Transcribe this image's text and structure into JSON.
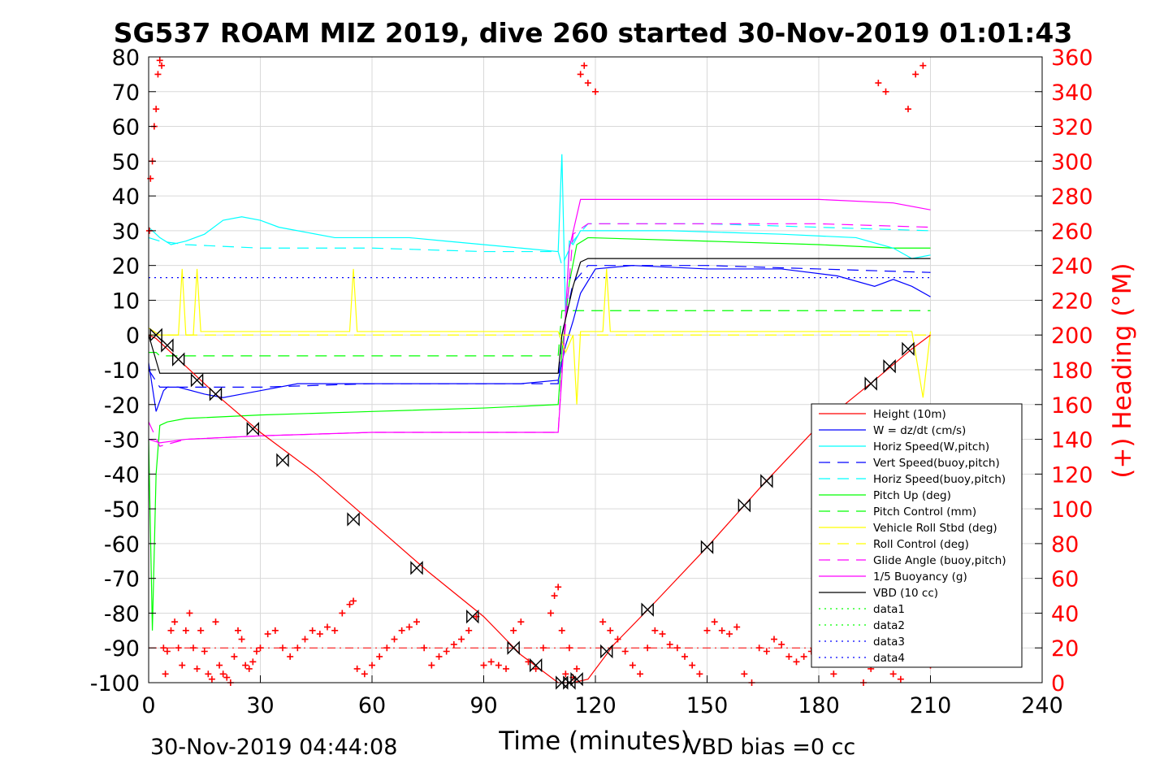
{
  "chart_data": {
    "type": "line",
    "title": "SG537 ROAM MIZ 2019, dive 260 started 30-Nov-2019 01:01:43",
    "xlabel": "Time (minutes)",
    "ylabel_right": "(+) Heading (°M)",
    "xlim": [
      0,
      240
    ],
    "ylim": [
      -100,
      80
    ],
    "ylim_right": [
      0,
      360
    ],
    "xticks": [
      "0",
      "30",
      "60",
      "90",
      "120",
      "150",
      "180",
      "210",
      "240"
    ],
    "yticks": [
      "80",
      "70",
      "60",
      "50",
      "40",
      "30",
      "20",
      "10",
      "0",
      "-10",
      "-20",
      "-30",
      "-40",
      "-50",
      "-60",
      "-70",
      "-80",
      "-90",
      "-100"
    ],
    "yticks_right": [
      "360",
      "340",
      "320",
      "300",
      "280",
      "260",
      "240",
      "220",
      "200",
      "180",
      "160",
      "140",
      "120",
      "100",
      "80",
      "60",
      "40",
      "20",
      "0"
    ],
    "grid": true,
    "legend_position": "lower-right",
    "footer_left": "30-Nov-2019 04:44:08",
    "footer_right": "VBD bias =0 cc",
    "colors": {
      "red": "#ff0000",
      "blue": "#0000ff",
      "cyan": "#00ffff",
      "green": "#00ff00",
      "yellow": "#ffff00",
      "magenta": "#ff00ff",
      "black": "#000000",
      "grid": "#d9d9d9"
    },
    "series": [
      {
        "name": "Height (10m)",
        "color": "#ff0000",
        "style": "solid",
        "x": [
          0,
          2,
          8,
          18,
          30,
          45,
          60,
          75,
          90,
          100,
          105,
          110,
          114,
          118,
          125,
          135,
          150,
          165,
          180,
          195,
          205,
          210
        ],
        "y": [
          0,
          -1,
          -7,
          -17,
          -28,
          -40,
          -54,
          -68,
          -81,
          -92,
          -96,
          -100,
          -100,
          -99,
          -89,
          -78,
          -61,
          -43,
          -26,
          -13,
          -4,
          0
        ]
      },
      {
        "name": "W = dz/dt (cm/s)",
        "color": "#0000ff",
        "style": "solid",
        "x": [
          0,
          1,
          2,
          3,
          4,
          5,
          8,
          15,
          20,
          25,
          30,
          40,
          60,
          80,
          100,
          110,
          112,
          114,
          116,
          120,
          130,
          150,
          170,
          185,
          195,
          200,
          205,
          210
        ],
        "y": [
          -8,
          -15,
          -22,
          -19,
          -16,
          -15,
          -15,
          -17,
          -18,
          -17,
          -16,
          -14,
          -14,
          -14,
          -14,
          -13,
          -3,
          4,
          12,
          19,
          20,
          19,
          19,
          17,
          14,
          16,
          14,
          11
        ]
      },
      {
        "name": "Horiz Speed(W,pitch)",
        "color": "#00ffff",
        "style": "solid",
        "x": [
          0,
          3,
          6,
          10,
          15,
          20,
          25,
          30,
          35,
          40,
          50,
          60,
          70,
          80,
          90,
          100,
          110,
          111,
          112,
          113,
          114,
          116,
          120,
          140,
          170,
          190,
          200,
          205,
          210
        ],
        "y": [
          31,
          28,
          26,
          27,
          29,
          33,
          34,
          33,
          31,
          30,
          28,
          28,
          28,
          27,
          26,
          25,
          24,
          52,
          5,
          27,
          26,
          30,
          30,
          30,
          29,
          28,
          25,
          22,
          23
        ]
      },
      {
        "name": "Vert Speed(buoy,pitch)",
        "color": "#0000ff",
        "style": "dash",
        "x": [
          0,
          3,
          10,
          30,
          60,
          90,
          110,
          111,
          114,
          118,
          150,
          180,
          210
        ],
        "y": [
          -10,
          -15,
          -15,
          -15,
          -14,
          -14,
          -14,
          0,
          15,
          20,
          20,
          19,
          18
        ]
      },
      {
        "name": "Horiz Speed(buoy,pitch)",
        "color": "#00ffff",
        "style": "dash",
        "x": [
          0,
          3,
          10,
          30,
          60,
          90,
          110,
          111,
          114,
          118,
          150,
          180,
          210
        ],
        "y": [
          28,
          27,
          26,
          25,
          25,
          24,
          24,
          20,
          27,
          32,
          32,
          31,
          30
        ]
      },
      {
        "name": "Pitch Up (deg)",
        "color": "#00ff00",
        "style": "solid",
        "x": [
          0,
          1,
          2,
          3,
          5,
          10,
          30,
          60,
          90,
          110,
          111,
          113,
          115,
          118,
          150,
          180,
          200,
          210
        ],
        "y": [
          -30,
          -85,
          -40,
          -26,
          -25,
          -24,
          -23,
          -22,
          -21,
          -20,
          -5,
          15,
          26,
          28,
          27,
          26,
          25,
          25
        ]
      },
      {
        "name": "Pitch Control (mm)",
        "color": "#00ff00",
        "style": "dash",
        "x": [
          0,
          2,
          3,
          30,
          60,
          90,
          110,
          111,
          114,
          150,
          180,
          210
        ],
        "y": [
          -5,
          -5,
          -6,
          -6,
          -6,
          -6,
          -6,
          7,
          7,
          7,
          7,
          7
        ]
      },
      {
        "name": "Vehicle Roll Stbd (deg)",
        "color": "#ffff00",
        "style": "solid",
        "x": [
          0,
          3,
          8,
          9,
          10,
          12,
          13,
          14,
          30,
          54,
          55,
          56,
          90,
          110,
          112,
          114,
          115,
          116,
          122,
          123,
          124,
          150,
          180,
          205,
          208,
          210
        ],
        "y": [
          2,
          0,
          0,
          19,
          0,
          0,
          19,
          1,
          1,
          1,
          19,
          1,
          1,
          1,
          -5,
          0,
          -20,
          1,
          1,
          19,
          1,
          1,
          1,
          1,
          -18,
          1
        ]
      },
      {
        "name": "Roll Control (deg)",
        "color": "#ffff00",
        "style": "dash",
        "x": [
          0,
          210
        ],
        "y": [
          0,
          0
        ]
      },
      {
        "name": "Glide Angle (buoy,pitch)",
        "color": "#ff00ff",
        "style": "dash",
        "x": [
          0,
          3,
          10,
          30,
          60,
          90,
          110,
          111,
          114,
          118,
          150,
          180,
          210
        ],
        "y": [
          -25,
          -32,
          -30,
          -29,
          -28,
          -28,
          -28,
          -10,
          29,
          32,
          32,
          32,
          31
        ]
      },
      {
        "name": "1/5 Buoyancy (g)",
        "color": "#ff00ff",
        "style": "solid",
        "x": [
          0,
          3,
          10,
          30,
          60,
          90,
          110,
          111,
          113,
          116,
          150,
          180,
          200,
          210
        ],
        "y": [
          -30,
          -31,
          -30,
          -29,
          -28,
          -28,
          -28,
          -12,
          25,
          39,
          39,
          39,
          38,
          36
        ]
      },
      {
        "name": "VBD (10 cc)",
        "color": "#000000",
        "style": "solid",
        "x": [
          0,
          3,
          110,
          111,
          114,
          116,
          118,
          210
        ],
        "y": [
          0,
          -11,
          -11,
          0,
          14,
          21,
          22,
          22
        ]
      },
      {
        "name": "data1",
        "color": "#00ff00",
        "style": "dot",
        "x": [],
        "y": []
      },
      {
        "name": "data2",
        "color": "#00ff00",
        "style": "dot",
        "x": [],
        "y": []
      },
      {
        "name": "data3",
        "color": "#0000ff",
        "style": "dot",
        "x": [
          0,
          210
        ],
        "y": [
          16.5,
          16.5
        ]
      },
      {
        "name": "data4",
        "color": "#0000ff",
        "style": "dot",
        "x": [
          0,
          210
        ],
        "y": [
          -17,
          -17
        ]
      }
    ],
    "reference_lines": [
      {
        "color": "#ff0000",
        "style": "dashdot",
        "x": [
          0,
          210
        ],
        "y": [
          -90,
          -90
        ]
      }
    ],
    "heading": {
      "color": "#ff0000",
      "marker": "+",
      "axis": "right",
      "x": [
        0.2,
        0.5,
        1,
        1.5,
        2,
        2.5,
        3,
        3.5,
        4,
        4.5,
        5,
        6,
        7,
        8,
        9,
        10,
        11,
        12,
        13,
        14,
        15,
        16,
        17,
        18,
        19,
        20,
        21,
        22,
        23,
        24,
        25,
        26,
        27,
        28,
        29,
        30,
        32,
        34,
        36,
        38,
        40,
        42,
        44,
        46,
        48,
        50,
        52,
        54,
        55,
        56,
        58,
        60,
        62,
        64,
        66,
        68,
        70,
        72,
        74,
        76,
        78,
        80,
        82,
        84,
        86,
        88,
        90,
        92,
        94,
        96,
        98,
        100,
        102,
        104,
        106,
        108,
        109,
        110,
        111,
        112,
        113,
        114,
        115,
        116,
        117,
        118,
        120,
        122,
        124,
        126,
        128,
        130,
        132,
        134,
        136,
        138,
        140,
        142,
        144,
        146,
        148,
        150,
        152,
        154,
        156,
        158,
        160,
        162,
        164,
        166,
        168,
        170,
        172,
        174,
        176,
        178,
        180,
        182,
        184,
        186,
        188,
        190,
        192,
        194,
        196,
        198,
        200,
        202,
        204,
        206,
        208,
        210
      ],
      "y": [
        260,
        290,
        300,
        320,
        330,
        350,
        358,
        355,
        20,
        5,
        18,
        30,
        35,
        20,
        10,
        30,
        40,
        20,
        8,
        30,
        18,
        5,
        2,
        35,
        10,
        5,
        3,
        0,
        15,
        30,
        25,
        10,
        8,
        12,
        18,
        20,
        28,
        30,
        20,
        15,
        20,
        25,
        30,
        28,
        32,
        30,
        40,
        45,
        47,
        8,
        5,
        10,
        15,
        20,
        25,
        30,
        32,
        35,
        20,
        10,
        15,
        18,
        22,
        25,
        30,
        38,
        10,
        12,
        10,
        8,
        30,
        35,
        12,
        8,
        20,
        40,
        50,
        55,
        30,
        5,
        20,
        3,
        8,
        350,
        355,
        345,
        340,
        35,
        30,
        25,
        18,
        10,
        5,
        20,
        30,
        28,
        22,
        20,
        15,
        10,
        5,
        30,
        35,
        30,
        28,
        32,
        5,
        0,
        20,
        18,
        25,
        22,
        15,
        12,
        15,
        18,
        20,
        15,
        5,
        20,
        18,
        22,
        0,
        8,
        345,
        340,
        5,
        2,
        330,
        350,
        355,
        10
      ]
    },
    "depth_markers": {
      "color": "#000000",
      "marker": "bowtie",
      "x": [
        2,
        5,
        8,
        13,
        18,
        28,
        36,
        55,
        72,
        87,
        98,
        104,
        111,
        113,
        115,
        123,
        134,
        150,
        160,
        166,
        194,
        199,
        204
      ],
      "y": [
        0,
        -3,
        -7,
        -13,
        -17,
        -27,
        -36,
        -53,
        -67,
        -81,
        -90,
        -95,
        -100,
        -100,
        -99,
        -91,
        -79,
        -61,
        -49,
        -42,
        -14,
        -9,
        -4
      ]
    },
    "legend": [
      "Height (10m)",
      "W = dz/dt (cm/s)",
      "Horiz Speed(W,pitch)",
      "Vert Speed(buoy,pitch)",
      "Horiz Speed(buoy,pitch)",
      "Pitch Up (deg)",
      "Pitch Control (mm)",
      "Vehicle Roll Stbd (deg)",
      "Roll Control (deg)",
      "Glide Angle (buoy,pitch)",
      "1/5 Buoyancy (g)",
      "VBD (10 cc)",
      "data1",
      "data2",
      "data3",
      "data4"
    ]
  }
}
